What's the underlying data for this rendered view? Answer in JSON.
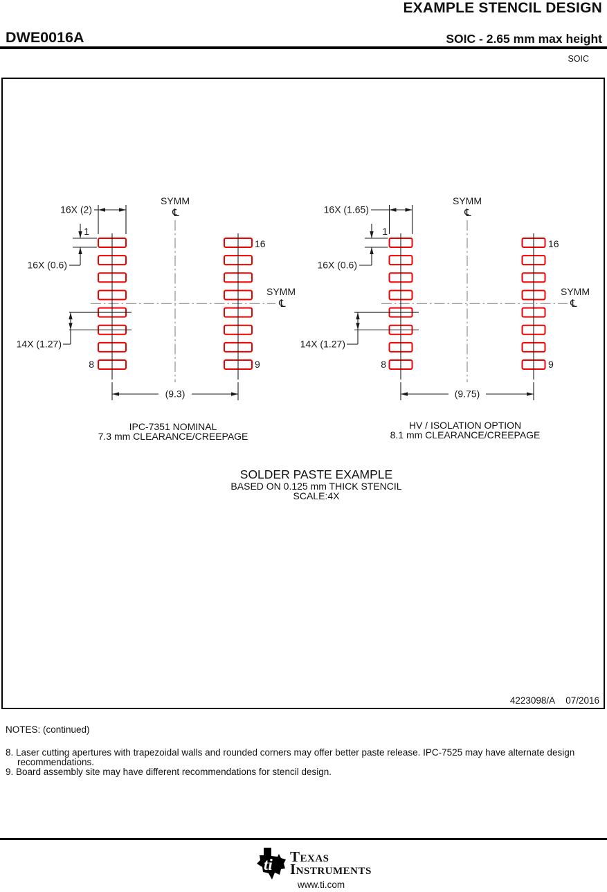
{
  "header": {
    "title": "EXAMPLE STENCIL DESIGN",
    "part_number": "DWE0016A",
    "subtitle": "SOIC - 2.65 mm max height"
  },
  "sheet": {
    "package_label": "SOIC",
    "drawing_number": "4223098/A",
    "revision_date": "07/2016"
  },
  "diagrams": [
    {
      "name": "ipc-7351-nominal",
      "pad_width_dim": "16X (2)",
      "pad_height_dim": "16X (0.6)",
      "pitch_dim": "14X (1.27)",
      "span_dim": "(9.3)",
      "pins": {
        "top_left": "1",
        "bottom_left": "8",
        "top_right": "16",
        "bottom_right": "9"
      },
      "symm_label": "SYMM",
      "centerline_symbol": "℄",
      "caption": [
        "IPC-7351 NOMINAL",
        "7.3 mm CLEARANCE/CREEPAGE"
      ]
    },
    {
      "name": "hv-isolation-option",
      "pad_width_dim": "16X (1.65)",
      "pad_height_dim": "16X (0.6)",
      "pitch_dim": "14X (1.27)",
      "span_dim": "(9.75)",
      "pins": {
        "top_left": "1",
        "bottom_left": "8",
        "top_right": "16",
        "bottom_right": "9"
      },
      "symm_label": "SYMM",
      "centerline_symbol": "℄",
      "caption": [
        "HV / ISOLATION OPTION",
        "8.1 mm CLEARANCE/CREEPAGE"
      ]
    }
  ],
  "solder_caption": [
    "SOLDER PASTE EXAMPLE",
    "BASED ON 0.125 mm THICK STENCIL",
    "SCALE:4X"
  ],
  "notes": {
    "heading": "NOTES: (continued)",
    "items": [
      "8. Laser cutting apertures with trapezoidal walls and rounded corners may offer better paste release. IPC-7525 may have alternate design recommendations.",
      "9. Board assembly site may have different recommendations for stencil design."
    ]
  },
  "footer": {
    "logo_monogram": "ti",
    "brand_line1": "Texas",
    "brand_line2": "Instruments",
    "website": "www.ti.com"
  },
  "colors": {
    "pad_outline": "#f20000",
    "centerline": "#8e8e8e",
    "ink": "#1a1a1a"
  }
}
